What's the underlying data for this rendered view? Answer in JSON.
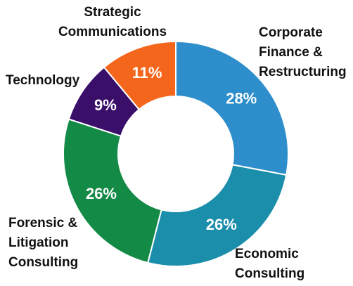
{
  "chart_data": {
    "type": "donut",
    "categories": [
      "Corporate Finance & Restructuring",
      "Economic Consulting",
      "Forensic & Litigation Consulting",
      "Technology",
      "Strategic Communications"
    ],
    "values": [
      28,
      26,
      26,
      9,
      11
    ],
    "value_labels": [
      "28%",
      "26%",
      "26%",
      "9%",
      "11%"
    ],
    "colors": [
      "#2e8ecb",
      "#1b8eab",
      "#148a47",
      "#3a0f6a",
      "#f4661b"
    ]
  }
}
